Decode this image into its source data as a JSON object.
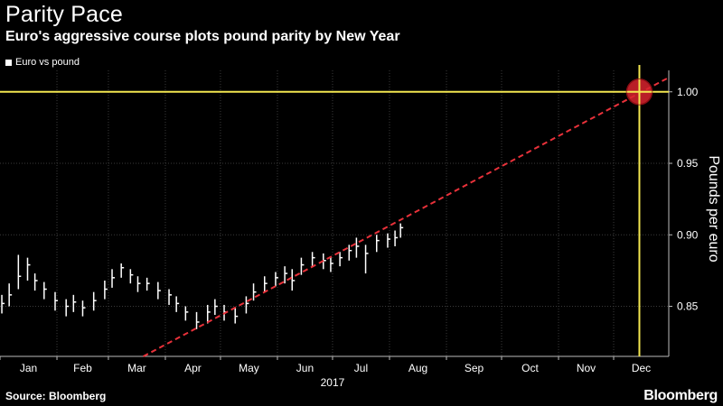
{
  "header": {
    "title": "Parity Pace",
    "subtitle": "Euro's aggressive course plots pound parity by New Year"
  },
  "footer": {
    "source": "Source: Bloomberg",
    "brand": "Bloomberg"
  },
  "colors": {
    "background": "#000000",
    "price_bars": "#ffffff",
    "trend_line": "#e8313a",
    "target_lines": "#f2e64f",
    "target_marker": "#d9232e",
    "gridlines": "#3a3a3a"
  },
  "chart_data": {
    "type": "bar",
    "style": "ohlc",
    "title": "Parity Pace",
    "subtitle": "Euro's aggressive course plots pound parity by New Year",
    "legend": [
      {
        "name": "Euro vs pound",
        "position": "top-left"
      }
    ],
    "xlabel": "2017",
    "ylabel": "Pounds per euro",
    "ylim": [
      0.815,
      1.015
    ],
    "yticks": [
      0.85,
      0.9,
      0.95,
      1.0
    ],
    "ytick_labels": [
      "0.85",
      "0.90",
      "0.95",
      "1.00"
    ],
    "xrange": [
      "2017-01-01",
      "2017-12-31"
    ],
    "months": [
      "Jan",
      "Feb",
      "Mar",
      "Apr",
      "May",
      "Jun",
      "Jul",
      "Aug",
      "Sep",
      "Oct",
      "Nov",
      "Dec"
    ],
    "year_label": "2017",
    "grid": true,
    "series": [
      {
        "name": "Euro vs pound",
        "x": [
          "2017-01-02",
          "2017-01-06",
          "2017-01-11",
          "2017-01-16",
          "2017-01-20",
          "2017-01-25",
          "2017-01-31",
          "2017-02-06",
          "2017-02-10",
          "2017-02-15",
          "2017-02-21",
          "2017-02-27",
          "2017-03-03",
          "2017-03-08",
          "2017-03-13",
          "2017-03-17",
          "2017-03-22",
          "2017-03-28",
          "2017-04-03",
          "2017-04-07",
          "2017-04-12",
          "2017-04-18",
          "2017-04-24",
          "2017-04-28",
          "2017-05-03",
          "2017-05-09",
          "2017-05-15",
          "2017-05-19",
          "2017-05-25",
          "2017-05-31",
          "2017-06-05",
          "2017-06-09",
          "2017-06-14",
          "2017-06-20",
          "2017-06-26",
          "2017-06-30",
          "2017-07-05",
          "2017-07-10",
          "2017-07-14",
          "2017-07-19",
          "2017-07-25",
          "2017-07-31",
          "2017-08-04",
          "2017-08-07"
        ],
        "close": [
          0.852,
          0.858,
          0.871,
          0.879,
          0.868,
          0.862,
          0.854,
          0.85,
          0.853,
          0.849,
          0.854,
          0.862,
          0.87,
          0.877,
          0.872,
          0.866,
          0.866,
          0.861,
          0.858,
          0.852,
          0.846,
          0.839,
          0.846,
          0.85,
          0.846,
          0.843,
          0.852,
          0.86,
          0.866,
          0.87,
          0.873,
          0.868,
          0.879,
          0.884,
          0.882,
          0.88,
          0.884,
          0.889,
          0.892,
          0.887,
          0.896,
          0.897,
          0.898,
          0.905
        ],
        "high": [
          0.858,
          0.866,
          0.886,
          0.884,
          0.873,
          0.867,
          0.86,
          0.855,
          0.858,
          0.854,
          0.86,
          0.868,
          0.876,
          0.88,
          0.876,
          0.871,
          0.87,
          0.867,
          0.862,
          0.857,
          0.85,
          0.846,
          0.851,
          0.855,
          0.851,
          0.849,
          0.857,
          0.866,
          0.871,
          0.874,
          0.878,
          0.876,
          0.884,
          0.888,
          0.887,
          0.885,
          0.888,
          0.893,
          0.898,
          0.893,
          0.9,
          0.901,
          0.903,
          0.908
        ],
        "low": [
          0.845,
          0.85,
          0.862,
          0.868,
          0.861,
          0.855,
          0.847,
          0.843,
          0.846,
          0.843,
          0.847,
          0.855,
          0.863,
          0.87,
          0.866,
          0.86,
          0.861,
          0.855,
          0.851,
          0.846,
          0.84,
          0.834,
          0.838,
          0.844,
          0.84,
          0.838,
          0.845,
          0.854,
          0.86,
          0.864,
          0.866,
          0.861,
          0.872,
          0.878,
          0.876,
          0.874,
          0.878,
          0.882,
          0.884,
          0.873,
          0.888,
          0.891,
          0.892,
          0.898
        ]
      }
    ],
    "trend_line": {
      "from": {
        "x": "2017-03-20",
        "y": 0.815
      },
      "to": {
        "x": "2017-12-31",
        "y": 1.01
      }
    },
    "parity_target": {
      "x": "2017-12-15",
      "y": 1.0
    }
  }
}
